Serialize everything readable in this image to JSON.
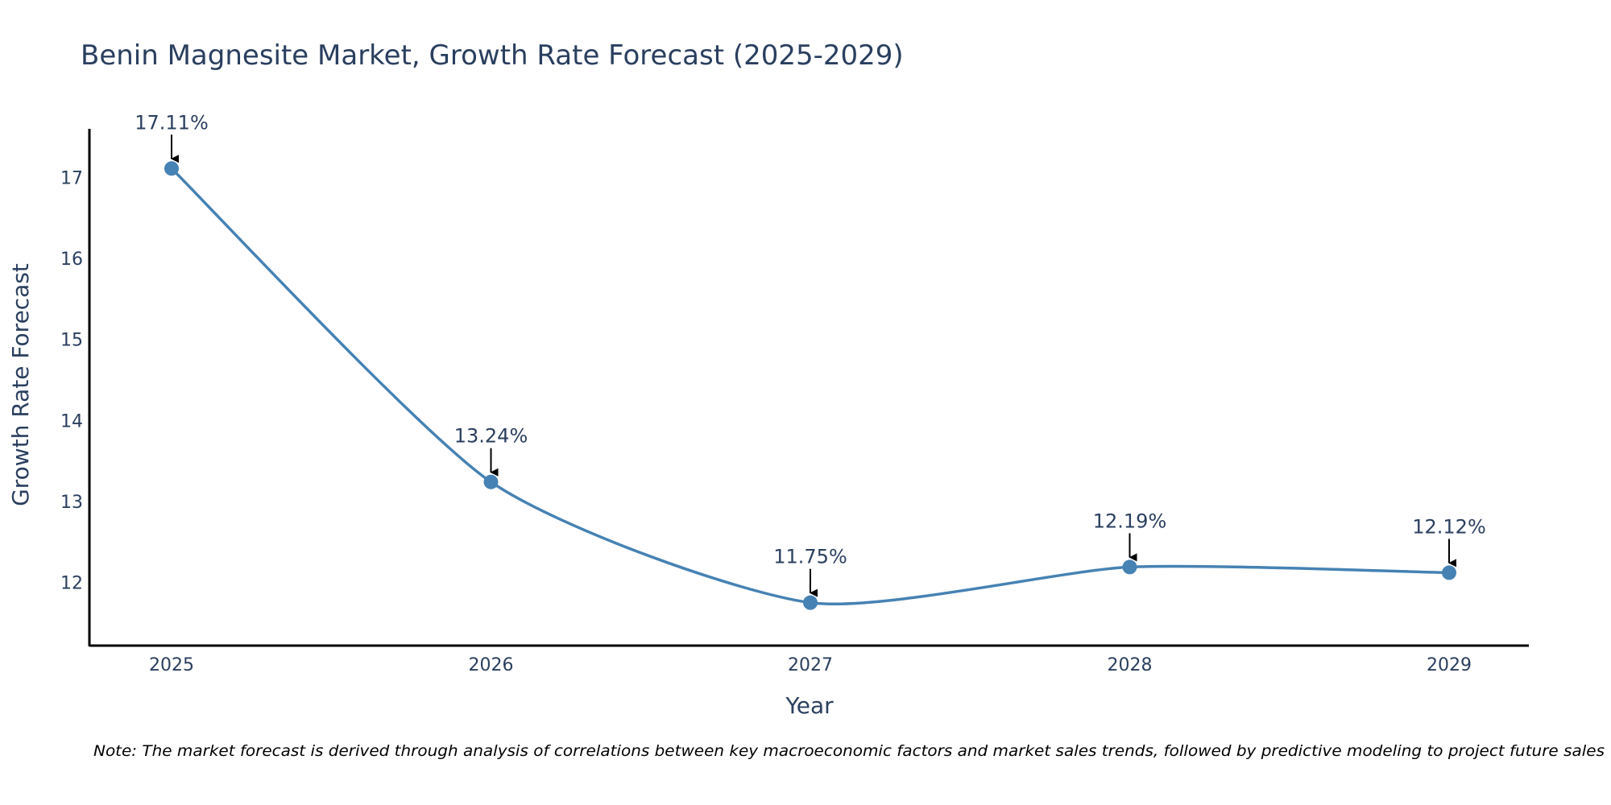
{
  "chart_data": {
    "type": "line",
    "title": "Benin Magnesite Market, Growth Rate Forecast (2025-2029)",
    "xlabel": "Year",
    "ylabel": "Growth Rate Forecast",
    "categories": [
      "2025",
      "2026",
      "2027",
      "2028",
      "2029"
    ],
    "series": [
      {
        "name": "Growth Rate Forecast",
        "values": [
          17.11,
          13.24,
          11.75,
          12.19,
          12.12
        ],
        "color": "#4682b4",
        "line_shape": "spline"
      }
    ],
    "data_labels": [
      "17.11%",
      "13.24%",
      "11.75%",
      "12.19%",
      "12.12%"
    ],
    "y_ticks": [
      "12",
      "13",
      "14",
      "15",
      "16",
      "17"
    ],
    "ylim": [
      11.22,
      17.6
    ],
    "grid": false,
    "note": "Note: The market forecast is derived through analysis of correlations between key macroeconomic factors and market sales trends, followed by predictive modeling to project future sales"
  }
}
